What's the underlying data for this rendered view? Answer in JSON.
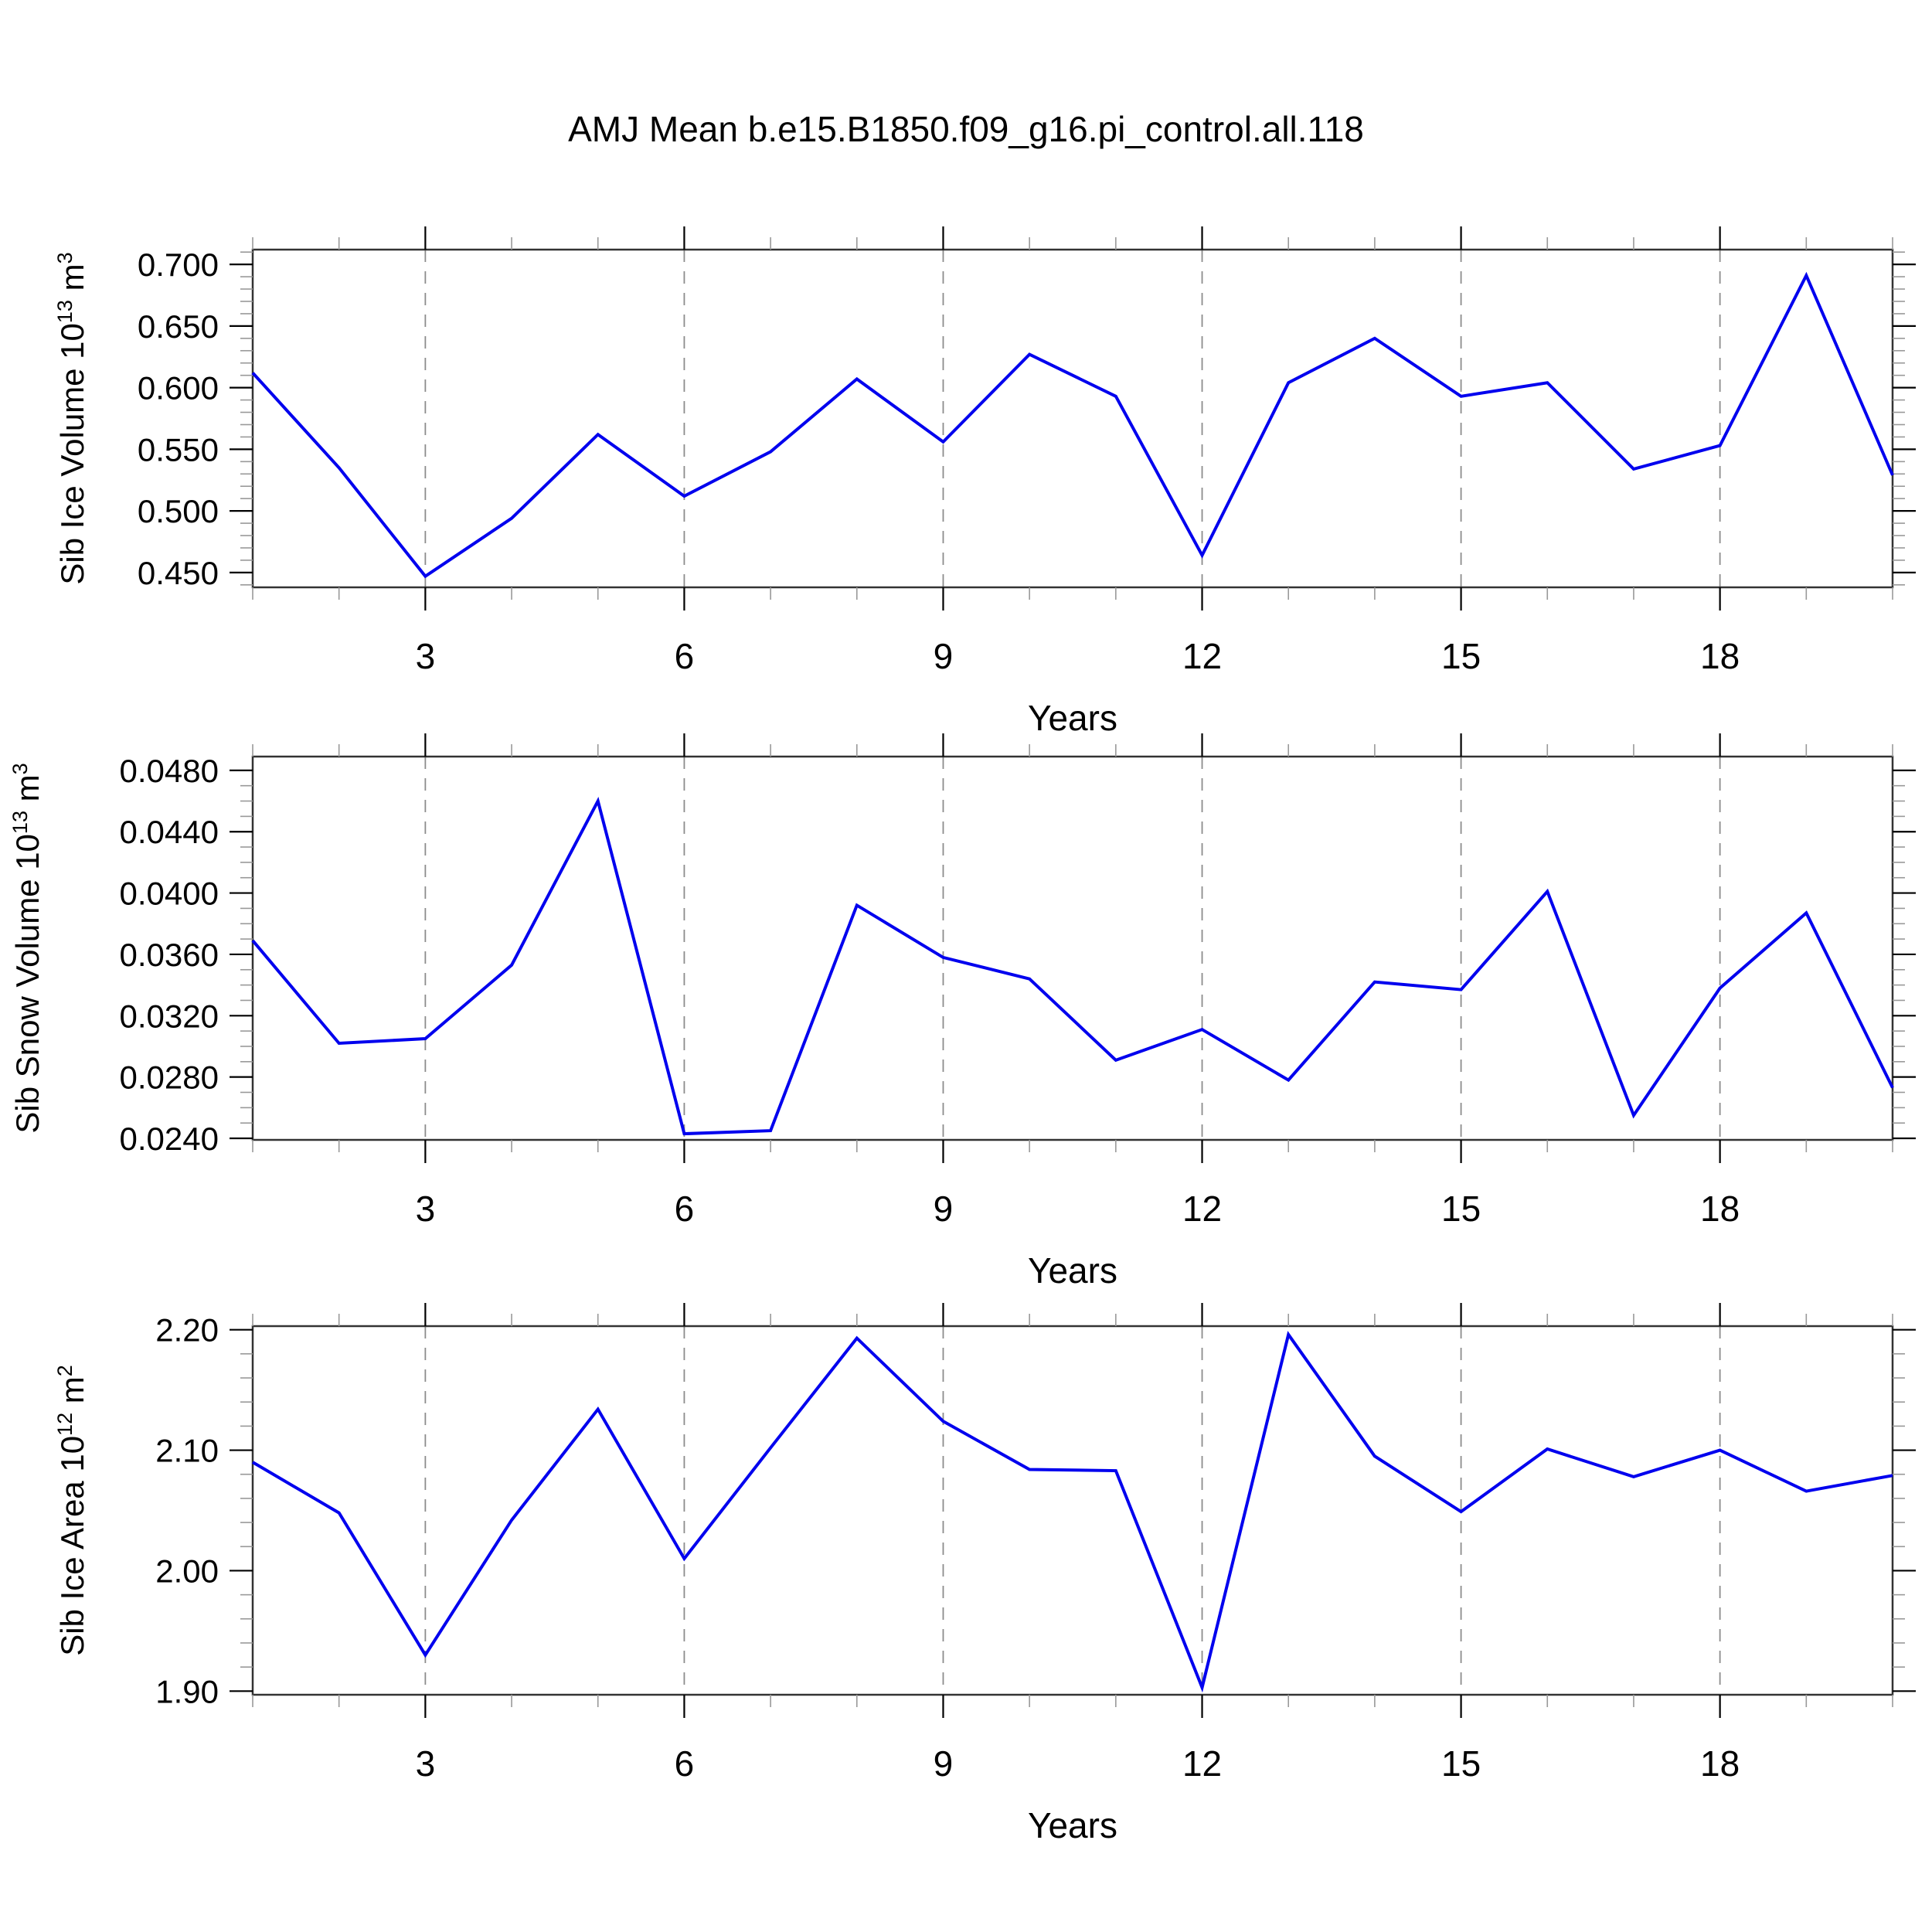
{
  "title": "AMJ Mean b.e15.B1850.f09_g16.pi_control.all.118",
  "colors": {
    "line": "#0000EE",
    "frame": "#333333",
    "major_tick": "#000000",
    "minor_tick": "#999999",
    "grid": "#8C8C8C",
    "text": "#000000",
    "background": "#FFFFFF"
  },
  "x_axis": {
    "label": "Years",
    "ticks": [
      3,
      6,
      9,
      12,
      15,
      18
    ],
    "minor_step": 1,
    "range": [
      1,
      20
    ]
  },
  "chart_data": [
    {
      "type": "line",
      "name": "sib-ice-volume",
      "ylabel_text": "Sib Ice Volume 10^13 m^3",
      "ylabel": [
        [
          "Sib Ice Volume 10",
          0
        ],
        [
          "13",
          1
        ],
        [
          " m",
          0
        ],
        [
          "3",
          1
        ]
      ],
      "xlabel": "Years",
      "x": [
        1,
        2,
        3,
        4,
        5,
        6,
        7,
        8,
        9,
        10,
        11,
        12,
        13,
        14,
        15,
        16,
        17,
        18,
        19,
        20
      ],
      "values": [
        0.612,
        0.535,
        0.447,
        0.494,
        0.562,
        0.512,
        0.548,
        0.607,
        0.556,
        0.627,
        0.593,
        0.464,
        0.604,
        0.64,
        0.593,
        0.604,
        0.534,
        0.553,
        0.691,
        0.529
      ],
      "yticks": [
        0.45,
        0.5,
        0.55,
        0.6,
        0.65,
        0.7
      ],
      "ytick_labels": [
        "0.450",
        "0.500",
        "0.550",
        "0.600",
        "0.650",
        "0.700"
      ],
      "yminor_step": 0.01,
      "ylim": [
        0.438,
        0.712
      ],
      "grid": true,
      "legend": "none"
    },
    {
      "type": "line",
      "name": "sib-snow-volume",
      "ylabel_text": "Sib Snow Volume 10^13 m^3",
      "ylabel": [
        [
          "Sib Snow Volume 10",
          0
        ],
        [
          "13",
          1
        ],
        [
          " m",
          0
        ],
        [
          "3",
          1
        ]
      ],
      "xlabel": "Years",
      "x": [
        1,
        2,
        3,
        4,
        5,
        6,
        7,
        8,
        9,
        10,
        11,
        12,
        13,
        14,
        15,
        16,
        17,
        18,
        19,
        20
      ],
      "values": [
        0.0369,
        0.0302,
        0.0305,
        0.0353,
        0.046,
        0.0243,
        0.0245,
        0.0392,
        0.0358,
        0.0344,
        0.0291,
        0.0311,
        0.0278,
        0.0342,
        0.0337,
        0.0401,
        0.0255,
        0.0338,
        0.0387,
        0.0273
      ],
      "yticks": [
        0.024,
        0.028,
        0.032,
        0.036,
        0.04,
        0.044,
        0.048
      ],
      "ytick_labels": [
        "0.0240",
        "0.0280",
        "0.0320",
        "0.0360",
        "0.0400",
        "0.0440",
        "0.0480"
      ],
      "yminor_step": 0.001,
      "ylim": [
        0.0239,
        0.0489
      ],
      "grid": true,
      "legend": "none"
    },
    {
      "type": "line",
      "name": "sib-ice-area",
      "ylabel_text": "Sib Ice Area 10^12 m^2",
      "ylabel": [
        [
          "Sib Ice Area 10",
          0
        ],
        [
          "12",
          1
        ],
        [
          " m",
          0
        ],
        [
          "2",
          1
        ]
      ],
      "xlabel": "Years",
      "x": [
        1,
        2,
        3,
        4,
        5,
        6,
        7,
        8,
        9,
        10,
        11,
        12,
        13,
        14,
        15,
        16,
        17,
        18,
        19,
        20
      ],
      "values": [
        2.09,
        2.048,
        1.93,
        2.042,
        2.134,
        2.01,
        2.102,
        2.193,
        2.124,
        2.084,
        2.083,
        1.903,
        2.196,
        2.095,
        2.049,
        2.101,
        2.078,
        2.1,
        2.066,
        2.079
      ],
      "yticks": [
        1.9,
        2.0,
        2.1,
        2.2
      ],
      "ytick_labels": [
        "1.90",
        "2.00",
        "2.10",
        "2.20"
      ],
      "yminor_step": 0.02,
      "ylim": [
        1.897,
        2.203
      ],
      "grid": true,
      "legend": "none"
    }
  ]
}
